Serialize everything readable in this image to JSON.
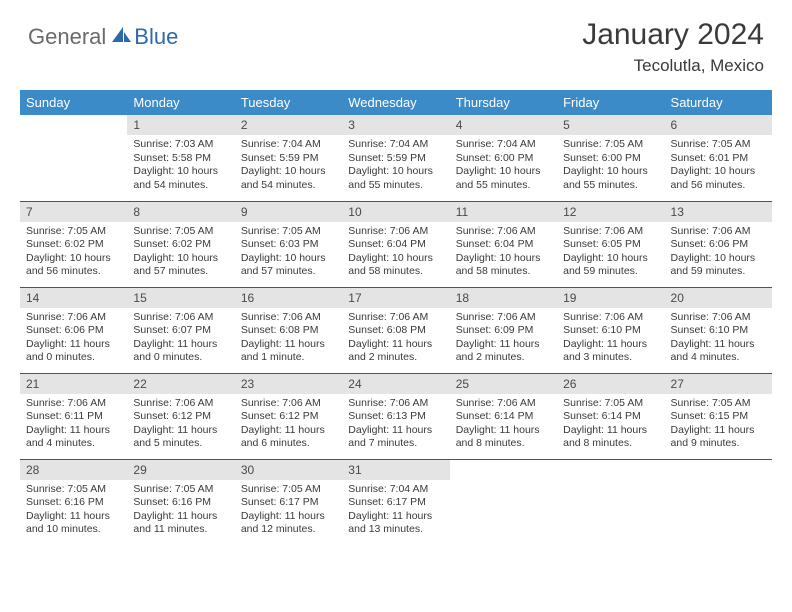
{
  "brand": {
    "general": "General",
    "blue": "Blue"
  },
  "title": {
    "month_year": "January 2024",
    "location": "Tecolutla, Mexico"
  },
  "dow": [
    "Sunday",
    "Monday",
    "Tuesday",
    "Wednesday",
    "Thursday",
    "Friday",
    "Saturday"
  ],
  "colors": {
    "header_bg": "#3b8bc8",
    "header_text": "#ffffff",
    "daynum_bg": "#e4e4e4",
    "rule": "#1f5e99",
    "logo_general": "#6a6a6a",
    "logo_blue": "#2d6aa8"
  },
  "weeks": [
    [
      null,
      {
        "n": "1",
        "sr": "Sunrise: 7:03 AM",
        "ss": "Sunset: 5:58 PM",
        "dl": "Daylight: 10 hours and 54 minutes."
      },
      {
        "n": "2",
        "sr": "Sunrise: 7:04 AM",
        "ss": "Sunset: 5:59 PM",
        "dl": "Daylight: 10 hours and 54 minutes."
      },
      {
        "n": "3",
        "sr": "Sunrise: 7:04 AM",
        "ss": "Sunset: 5:59 PM",
        "dl": "Daylight: 10 hours and 55 minutes."
      },
      {
        "n": "4",
        "sr": "Sunrise: 7:04 AM",
        "ss": "Sunset: 6:00 PM",
        "dl": "Daylight: 10 hours and 55 minutes."
      },
      {
        "n": "5",
        "sr": "Sunrise: 7:05 AM",
        "ss": "Sunset: 6:00 PM",
        "dl": "Daylight: 10 hours and 55 minutes."
      },
      {
        "n": "6",
        "sr": "Sunrise: 7:05 AM",
        "ss": "Sunset: 6:01 PM",
        "dl": "Daylight: 10 hours and 56 minutes."
      }
    ],
    [
      {
        "n": "7",
        "sr": "Sunrise: 7:05 AM",
        "ss": "Sunset: 6:02 PM",
        "dl": "Daylight: 10 hours and 56 minutes."
      },
      {
        "n": "8",
        "sr": "Sunrise: 7:05 AM",
        "ss": "Sunset: 6:02 PM",
        "dl": "Daylight: 10 hours and 57 minutes."
      },
      {
        "n": "9",
        "sr": "Sunrise: 7:05 AM",
        "ss": "Sunset: 6:03 PM",
        "dl": "Daylight: 10 hours and 57 minutes."
      },
      {
        "n": "10",
        "sr": "Sunrise: 7:06 AM",
        "ss": "Sunset: 6:04 PM",
        "dl": "Daylight: 10 hours and 58 minutes."
      },
      {
        "n": "11",
        "sr": "Sunrise: 7:06 AM",
        "ss": "Sunset: 6:04 PM",
        "dl": "Daylight: 10 hours and 58 minutes."
      },
      {
        "n": "12",
        "sr": "Sunrise: 7:06 AM",
        "ss": "Sunset: 6:05 PM",
        "dl": "Daylight: 10 hours and 59 minutes."
      },
      {
        "n": "13",
        "sr": "Sunrise: 7:06 AM",
        "ss": "Sunset: 6:06 PM",
        "dl": "Daylight: 10 hours and 59 minutes."
      }
    ],
    [
      {
        "n": "14",
        "sr": "Sunrise: 7:06 AM",
        "ss": "Sunset: 6:06 PM",
        "dl": "Daylight: 11 hours and 0 minutes."
      },
      {
        "n": "15",
        "sr": "Sunrise: 7:06 AM",
        "ss": "Sunset: 6:07 PM",
        "dl": "Daylight: 11 hours and 0 minutes."
      },
      {
        "n": "16",
        "sr": "Sunrise: 7:06 AM",
        "ss": "Sunset: 6:08 PM",
        "dl": "Daylight: 11 hours and 1 minute."
      },
      {
        "n": "17",
        "sr": "Sunrise: 7:06 AM",
        "ss": "Sunset: 6:08 PM",
        "dl": "Daylight: 11 hours and 2 minutes."
      },
      {
        "n": "18",
        "sr": "Sunrise: 7:06 AM",
        "ss": "Sunset: 6:09 PM",
        "dl": "Daylight: 11 hours and 2 minutes."
      },
      {
        "n": "19",
        "sr": "Sunrise: 7:06 AM",
        "ss": "Sunset: 6:10 PM",
        "dl": "Daylight: 11 hours and 3 minutes."
      },
      {
        "n": "20",
        "sr": "Sunrise: 7:06 AM",
        "ss": "Sunset: 6:10 PM",
        "dl": "Daylight: 11 hours and 4 minutes."
      }
    ],
    [
      {
        "n": "21",
        "sr": "Sunrise: 7:06 AM",
        "ss": "Sunset: 6:11 PM",
        "dl": "Daylight: 11 hours and 4 minutes."
      },
      {
        "n": "22",
        "sr": "Sunrise: 7:06 AM",
        "ss": "Sunset: 6:12 PM",
        "dl": "Daylight: 11 hours and 5 minutes."
      },
      {
        "n": "23",
        "sr": "Sunrise: 7:06 AM",
        "ss": "Sunset: 6:12 PM",
        "dl": "Daylight: 11 hours and 6 minutes."
      },
      {
        "n": "24",
        "sr": "Sunrise: 7:06 AM",
        "ss": "Sunset: 6:13 PM",
        "dl": "Daylight: 11 hours and 7 minutes."
      },
      {
        "n": "25",
        "sr": "Sunrise: 7:06 AM",
        "ss": "Sunset: 6:14 PM",
        "dl": "Daylight: 11 hours and 8 minutes."
      },
      {
        "n": "26",
        "sr": "Sunrise: 7:05 AM",
        "ss": "Sunset: 6:14 PM",
        "dl": "Daylight: 11 hours and 8 minutes."
      },
      {
        "n": "27",
        "sr": "Sunrise: 7:05 AM",
        "ss": "Sunset: 6:15 PM",
        "dl": "Daylight: 11 hours and 9 minutes."
      }
    ],
    [
      {
        "n": "28",
        "sr": "Sunrise: 7:05 AM",
        "ss": "Sunset: 6:16 PM",
        "dl": "Daylight: 11 hours and 10 minutes."
      },
      {
        "n": "29",
        "sr": "Sunrise: 7:05 AM",
        "ss": "Sunset: 6:16 PM",
        "dl": "Daylight: 11 hours and 11 minutes."
      },
      {
        "n": "30",
        "sr": "Sunrise: 7:05 AM",
        "ss": "Sunset: 6:17 PM",
        "dl": "Daylight: 11 hours and 12 minutes."
      },
      {
        "n": "31",
        "sr": "Sunrise: 7:04 AM",
        "ss": "Sunset: 6:17 PM",
        "dl": "Daylight: 11 hours and 13 minutes."
      },
      null,
      null,
      null
    ]
  ]
}
